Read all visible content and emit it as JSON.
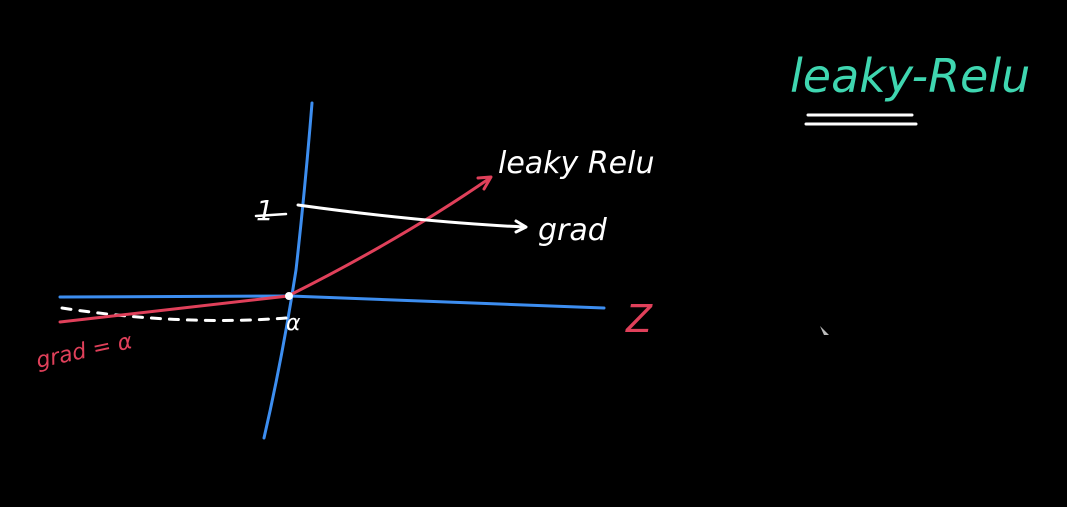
{
  "title": "leaky-Relu",
  "labels": {
    "curve_label": "leaky Relu",
    "grad_label": "grad",
    "one_label": "1",
    "alpha_label": "α",
    "z_label": "Z",
    "neg_grad_label": "grad = α"
  },
  "colors": {
    "background": "#000000",
    "axis": "#3d8ef0",
    "relu_curve": "#e0405a",
    "grad_line": "#ffffff",
    "title": "#3fd6b0",
    "neg_label": "#e0405a"
  }
}
